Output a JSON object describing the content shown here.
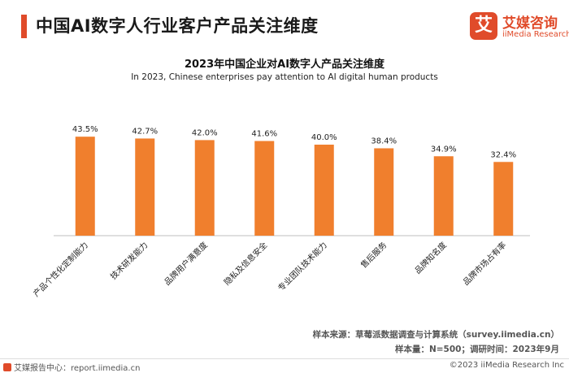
{
  "header": {
    "title": "中国AI数字人行业客户产品关注维度",
    "accent_color": "#e04b2a"
  },
  "logo": {
    "glyph": "艾",
    "name_cn": "艾媒咨询",
    "name_en": "iiMedia Research",
    "color": "#e04b2a"
  },
  "chart_data": {
    "type": "bar",
    "title": "2023年中国企业对AI数字人产品关注维度",
    "subtitle": "In 2023, Chinese enterprises pay attention to AI digital human products",
    "categories": [
      "产品个性化定制能力",
      "技术研发能力",
      "品牌用户满意度",
      "隐私及信息安全",
      "专业团队技术能力",
      "售后服务",
      "品牌知名度",
      "品牌市场占有率"
    ],
    "values": [
      43.5,
      42.7,
      42.0,
      41.6,
      40.0,
      38.4,
      34.9,
      32.4
    ],
    "value_labels": [
      "43.5%",
      "42.7%",
      "42.0%",
      "41.6%",
      "40.0%",
      "38.4%",
      "34.9%",
      "32.4%"
    ],
    "ylim": [
      0,
      60
    ],
    "bar_color": "#f07f2d",
    "axis_color": "#bfbfbf",
    "grid": false,
    "legend": false
  },
  "source": {
    "line1": "样本来源：草莓派数据调查与计算系统（survey.iimedia.cn）",
    "line2": "样本量：N=500；调研时间：2023年9月"
  },
  "footer": {
    "left": "艾媒报告中心：report.iimedia.cn",
    "right": "©2023  iiMedia Research  Inc"
  }
}
